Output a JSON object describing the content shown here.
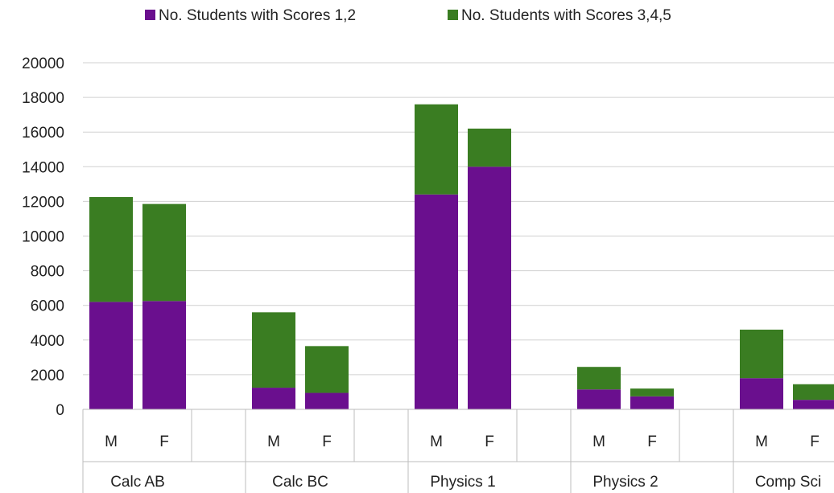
{
  "chart_data": {
    "type": "bar",
    "stacked": true,
    "groups": [
      {
        "label": "Calc AB",
        "subcategories": [
          "M",
          "F"
        ]
      },
      {
        "label": "Calc BC",
        "subcategories": [
          "M",
          "F"
        ]
      },
      {
        "label": "Physics 1",
        "subcategories": [
          "M",
          "F"
        ]
      },
      {
        "label": "Physics 2",
        "subcategories": [
          "M",
          "F"
        ]
      },
      {
        "label": "Comp Sci",
        "subcategories": [
          "M",
          "F"
        ]
      }
    ],
    "series": [
      {
        "name": "No. Students with Scores 1,2",
        "color": "#6a0f8e",
        "values": [
          6200,
          6250,
          1250,
          950,
          12400,
          14000,
          1150,
          750,
          1800,
          550
        ]
      },
      {
        "name": "No. Students with Scores 3,4,5",
        "color": "#3a7d22",
        "values": [
          6050,
          5600,
          4350,
          2700,
          5200,
          2200,
          1300,
          450,
          2800,
          900
        ]
      }
    ],
    "ylim": [
      0,
      20000
    ],
    "yticks": [
      "0",
      "2000",
      "4000",
      "6000",
      "8000",
      "10000",
      "12000",
      "14000",
      "16000",
      "18000",
      "20000"
    ],
    "grid": true,
    "legend_position": "top"
  }
}
